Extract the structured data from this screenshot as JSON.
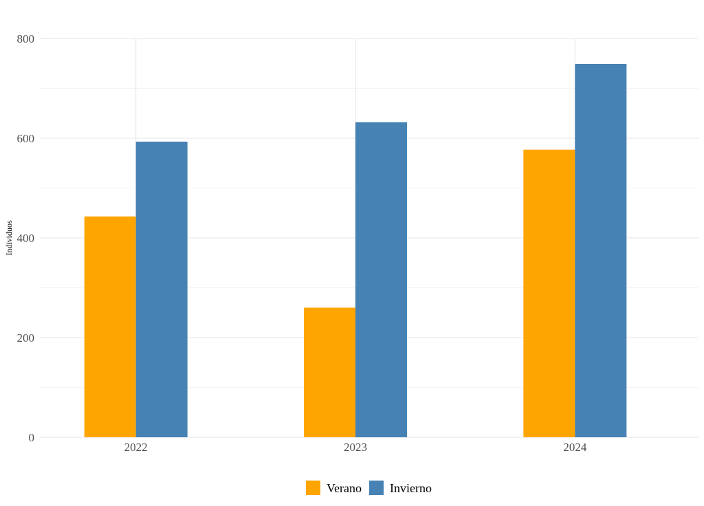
{
  "chart_data": {
    "type": "bar",
    "categories": [
      "2022",
      "2023",
      "2024"
    ],
    "series": [
      {
        "name": "Verano",
        "color": "#FFA500",
        "values": [
          443,
          260,
          577
        ]
      },
      {
        "name": "Invierno",
        "color": "#4682B4",
        "values": [
          593,
          632,
          749
        ]
      }
    ],
    "title": "",
    "xlabel": "",
    "ylabel": "Individuos",
    "ylim": [
      0,
      800
    ],
    "yticks": [
      0,
      200,
      400,
      600,
      800
    ],
    "grid": true,
    "legend_position": "bottom"
  }
}
